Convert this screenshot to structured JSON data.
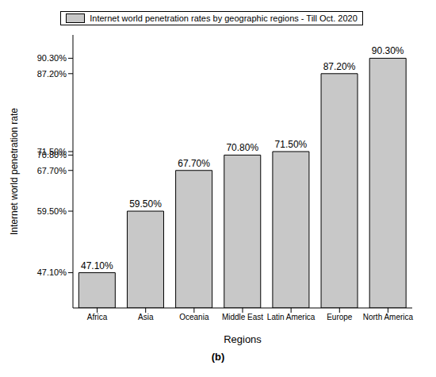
{
  "chart_data": {
    "type": "bar",
    "x_label": "Regions",
    "y_label": "Internet world penetration rate",
    "annotation": "(b)",
    "categories": [
      "Africa",
      "Asia",
      "Oceania",
      "Middle East",
      "Latin America",
      "Europe",
      "North America"
    ],
    "series": [
      {
        "name": "Internet world penetration rates by geographic regions - Till Oct. 2020",
        "color": "#c8c8c8",
        "values": [
          47.1,
          59.5,
          67.7,
          70.8,
          71.5,
          87.2,
          90.3
        ],
        "value_labels": [
          "47.10%",
          "59.50%",
          "67.70%",
          "70.80%",
          "71.50%",
          "87.20%",
          "90.30%"
        ]
      }
    ],
    "ylim": [
      40,
      95
    ],
    "yticks": [
      {
        "value": 47.1,
        "label": "47.10%"
      },
      {
        "value": 59.5,
        "label": "59.50%"
      },
      {
        "value": 67.7,
        "label": "67.70%"
      },
      {
        "value": 70.8,
        "label": "70.80%"
      },
      {
        "value": 71.5,
        "label": "71.50%"
      },
      {
        "value": 87.2,
        "label": "87.20%"
      },
      {
        "value": 90.3,
        "label": "90.30%"
      }
    ],
    "data_labels": true,
    "legend": "top",
    "grid": false
  }
}
